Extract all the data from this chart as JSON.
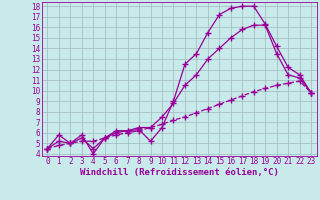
{
  "xlabel": "Windchill (Refroidissement éolien,°C)",
  "xlim": [
    -0.5,
    23.5
  ],
  "ylim": [
    3.8,
    18.4
  ],
  "xticks": [
    0,
    1,
    2,
    3,
    4,
    5,
    6,
    7,
    8,
    9,
    10,
    11,
    12,
    13,
    14,
    15,
    16,
    17,
    18,
    19,
    20,
    21,
    22,
    23
  ],
  "yticks": [
    4,
    5,
    6,
    7,
    8,
    9,
    10,
    11,
    12,
    13,
    14,
    15,
    16,
    17,
    18
  ],
  "bg_color": "#c8eaea",
  "grid_color": "#a0b8b8",
  "line_color": "#990099",
  "line1_y": [
    4.5,
    5.8,
    5.0,
    5.8,
    4.0,
    5.5,
    6.2,
    6.2,
    6.3,
    5.2,
    6.5,
    9.0,
    12.5,
    13.5,
    15.5,
    17.2,
    17.8,
    18.0,
    18.0,
    16.3,
    14.2,
    12.2,
    11.5,
    9.8
  ],
  "line2_y": [
    4.5,
    5.2,
    5.0,
    5.5,
    4.5,
    5.5,
    6.0,
    6.2,
    6.5,
    6.5,
    7.5,
    8.8,
    10.5,
    11.5,
    13.0,
    14.0,
    15.0,
    15.8,
    16.2,
    16.2,
    13.5,
    11.5,
    11.2,
    9.8
  ],
  "line3_y": [
    4.5,
    4.8,
    5.0,
    5.2,
    5.2,
    5.5,
    5.8,
    6.0,
    6.2,
    6.5,
    6.8,
    7.2,
    7.5,
    7.9,
    8.3,
    8.7,
    9.1,
    9.5,
    9.9,
    10.2,
    10.5,
    10.7,
    10.9,
    9.8
  ],
  "tick_fontsize": 5.5,
  "label_fontsize": 6.5
}
